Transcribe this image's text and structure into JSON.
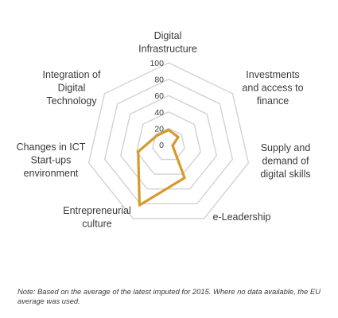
{
  "chart_data": {
    "type": "radar",
    "axes": [
      "Digital Infrastructure",
      "Investments and access to finance",
      "Supply and demand of digital skills",
      "e-Leadership",
      "Entrepreneurial culture",
      "Changes in ICT Start-ups environment",
      "Integration of Digital Technology"
    ],
    "axis_label_lines": [
      [
        "Digital",
        "Infrastructure"
      ],
      [
        "Investments",
        "and access to",
        "finance"
      ],
      [
        "Supply and",
        "demand of",
        "digital skills"
      ],
      [
        "e-Leadership"
      ],
      [
        "Entrepreneurial",
        "culture"
      ],
      [
        "Changes in ICT",
        "Start-ups",
        "environment"
      ],
      [
        "Integration of",
        "Digital",
        "Technology"
      ]
    ],
    "ticks": [
      "0",
      "20",
      "40",
      "60",
      "80",
      "100"
    ],
    "tick_values": [
      0,
      20,
      40,
      60,
      80,
      100
    ],
    "range": [
      0,
      100
    ],
    "series": [
      {
        "values": [
          18,
          15,
          5,
          45,
          82,
          38,
          18
        ]
      }
    ],
    "colors": {
      "series": "#d79a2a",
      "grid": "#d2d2d2",
      "text": "#3a3a3a"
    },
    "grid": true
  },
  "note": "Note:  Based on the average of the latest imputed for 2015. Where no data available, the EU average was used."
}
